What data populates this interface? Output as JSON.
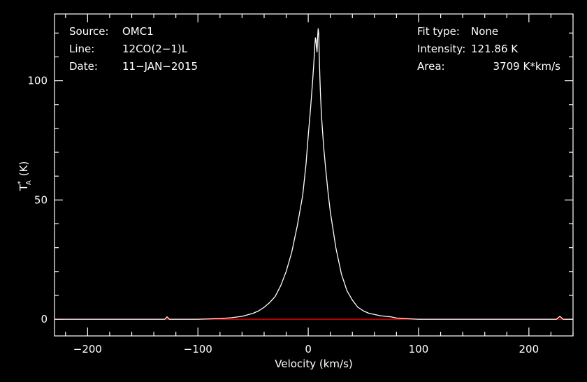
{
  "header": {
    "source_label": "Source:",
    "source_value": "OMC1",
    "line_label": "Line:",
    "line_value": "12CO(2−1)L",
    "date_label": "Date:",
    "date_value": "11−JAN−2015",
    "fit_label": "Fit type:",
    "fit_value": "None",
    "intensity_label": "Intensity:",
    "intensity_value": "121.86 K",
    "area_label": "Area:",
    "area_value": "3709 K*km/s"
  },
  "colors": {
    "background": "#000000",
    "axes": "#ffffff",
    "spectrum": "#ffffff",
    "baseline": "#ff0000"
  },
  "chart_data": {
    "type": "line",
    "xlabel": "Velocity (km/s)",
    "ylabel_main": "T",
    "ylabel_sup": "*",
    "ylabel_sub": "A",
    "ylabel_unit": "(K)",
    "xlim": [
      -230,
      240
    ],
    "ylim": [
      -7,
      128
    ],
    "x_ticks": [
      -200,
      -100,
      0,
      100,
      200
    ],
    "x_tick_labels": [
      "−200",
      "−100",
      "0",
      "100",
      "200"
    ],
    "y_ticks": [
      0,
      50,
      100
    ],
    "y_tick_labels": [
      "0",
      "50",
      "100"
    ],
    "grid": false,
    "series": [
      {
        "x": [
          -230,
          -200,
          -150,
          -130,
          -128,
          -126,
          -110,
          -100,
          -80,
          -70,
          -60,
          -50,
          -45,
          -40,
          -35,
          -30,
          -25,
          -20,
          -15,
          -10,
          -5,
          -2,
          0,
          2,
          4,
          5,
          6,
          6.5,
          7,
          7.5,
          8,
          8.5,
          9,
          9.5,
          10,
          10.5,
          11,
          12,
          14,
          16,
          18,
          20,
          25,
          30,
          35,
          40,
          45,
          50,
          55,
          60,
          65,
          70,
          75,
          80,
          90,
          100,
          150,
          200,
          225,
          228,
          231,
          240
        ],
        "y": [
          0,
          0,
          0,
          0,
          1,
          0,
          0,
          0,
          0.3,
          0.6,
          1.2,
          2.5,
          3.5,
          5,
          7,
          9.5,
          14,
          20,
          28,
          39,
          52,
          65,
          77,
          88,
          100,
          107,
          115,
          118,
          117,
          114,
          112,
          118,
          121.86,
          120,
          110,
          102,
          95,
          85,
          72,
          62,
          53,
          45,
          30,
          19,
          12,
          8,
          5,
          3.5,
          2.5,
          2,
          1.5,
          1.2,
          1,
          0.5,
          0.2,
          0,
          0,
          0,
          0,
          1.2,
          0,
          0
        ]
      },
      {
        "x": [
          -230,
          240
        ],
        "y": [
          0,
          0
        ]
      }
    ]
  }
}
